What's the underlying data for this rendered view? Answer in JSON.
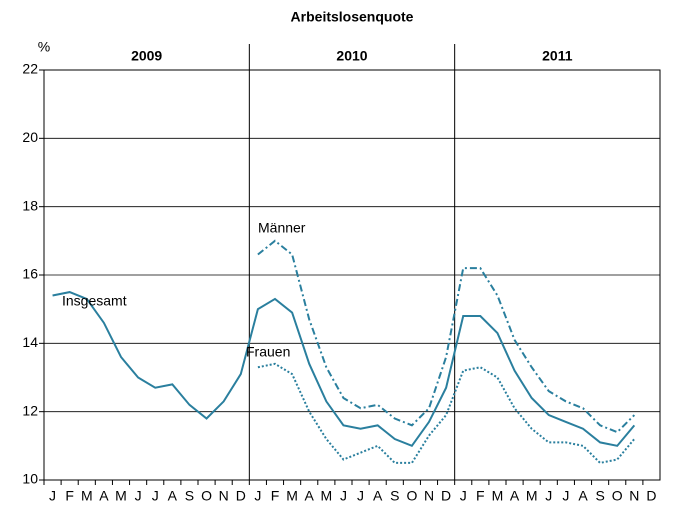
{
  "chart_data": {
    "type": "line",
    "title": "Arbeitslosenquote",
    "y_label": "%",
    "years": [
      "2009",
      "2010",
      "2011"
    ],
    "categories": [
      "J",
      "F",
      "M",
      "A",
      "M",
      "J",
      "J",
      "A",
      "S",
      "O",
      "N",
      "D",
      "J",
      "F",
      "M",
      "A",
      "M",
      "J",
      "J",
      "A",
      "S",
      "O",
      "N",
      "D",
      "J",
      "F",
      "M",
      "A",
      "M",
      "J",
      "J",
      "A",
      "S",
      "O",
      "N",
      "D"
    ],
    "series": [
      {
        "name": "Insgesamt",
        "color": "#2a7f9e",
        "dash": "solid",
        "values": [
          15.4,
          15.5,
          15.3,
          14.6,
          13.6,
          13.0,
          12.7,
          12.8,
          12.2,
          11.8,
          12.3,
          13.1,
          15.0,
          15.3,
          14.9,
          13.4,
          12.3,
          11.6,
          11.5,
          11.6,
          11.2,
          11.0,
          11.7,
          12.7,
          14.8,
          14.8,
          14.3,
          13.2,
          12.4,
          11.9,
          11.7,
          11.5,
          11.1,
          11.0,
          11.6,
          null
        ]
      },
      {
        "name": "Männer",
        "color": "#2a7f9e",
        "dash": "dashdot",
        "values": [
          null,
          null,
          null,
          null,
          null,
          null,
          null,
          null,
          null,
          null,
          null,
          null,
          16.6,
          17.0,
          16.6,
          14.7,
          13.3,
          12.4,
          12.1,
          12.2,
          11.8,
          11.6,
          12.1,
          13.6,
          16.2,
          16.2,
          15.4,
          14.1,
          13.3,
          12.6,
          12.3,
          12.1,
          11.6,
          11.4,
          11.9,
          null
        ]
      },
      {
        "name": "Frauen",
        "color": "#2a7f9e",
        "dash": "dotted",
        "values": [
          null,
          null,
          null,
          null,
          null,
          null,
          null,
          null,
          null,
          null,
          null,
          null,
          13.3,
          13.4,
          13.1,
          12.0,
          11.2,
          10.6,
          10.8,
          11.0,
          10.5,
          10.5,
          11.3,
          11.9,
          13.2,
          13.3,
          13.0,
          12.1,
          11.5,
          11.1,
          11.1,
          11.0,
          10.5,
          10.6,
          11.2,
          null
        ]
      }
    ],
    "ylim": [
      10,
      22
    ],
    "yticks": [
      10,
      12,
      14,
      16,
      18,
      20,
      22
    ],
    "grid": true
  }
}
